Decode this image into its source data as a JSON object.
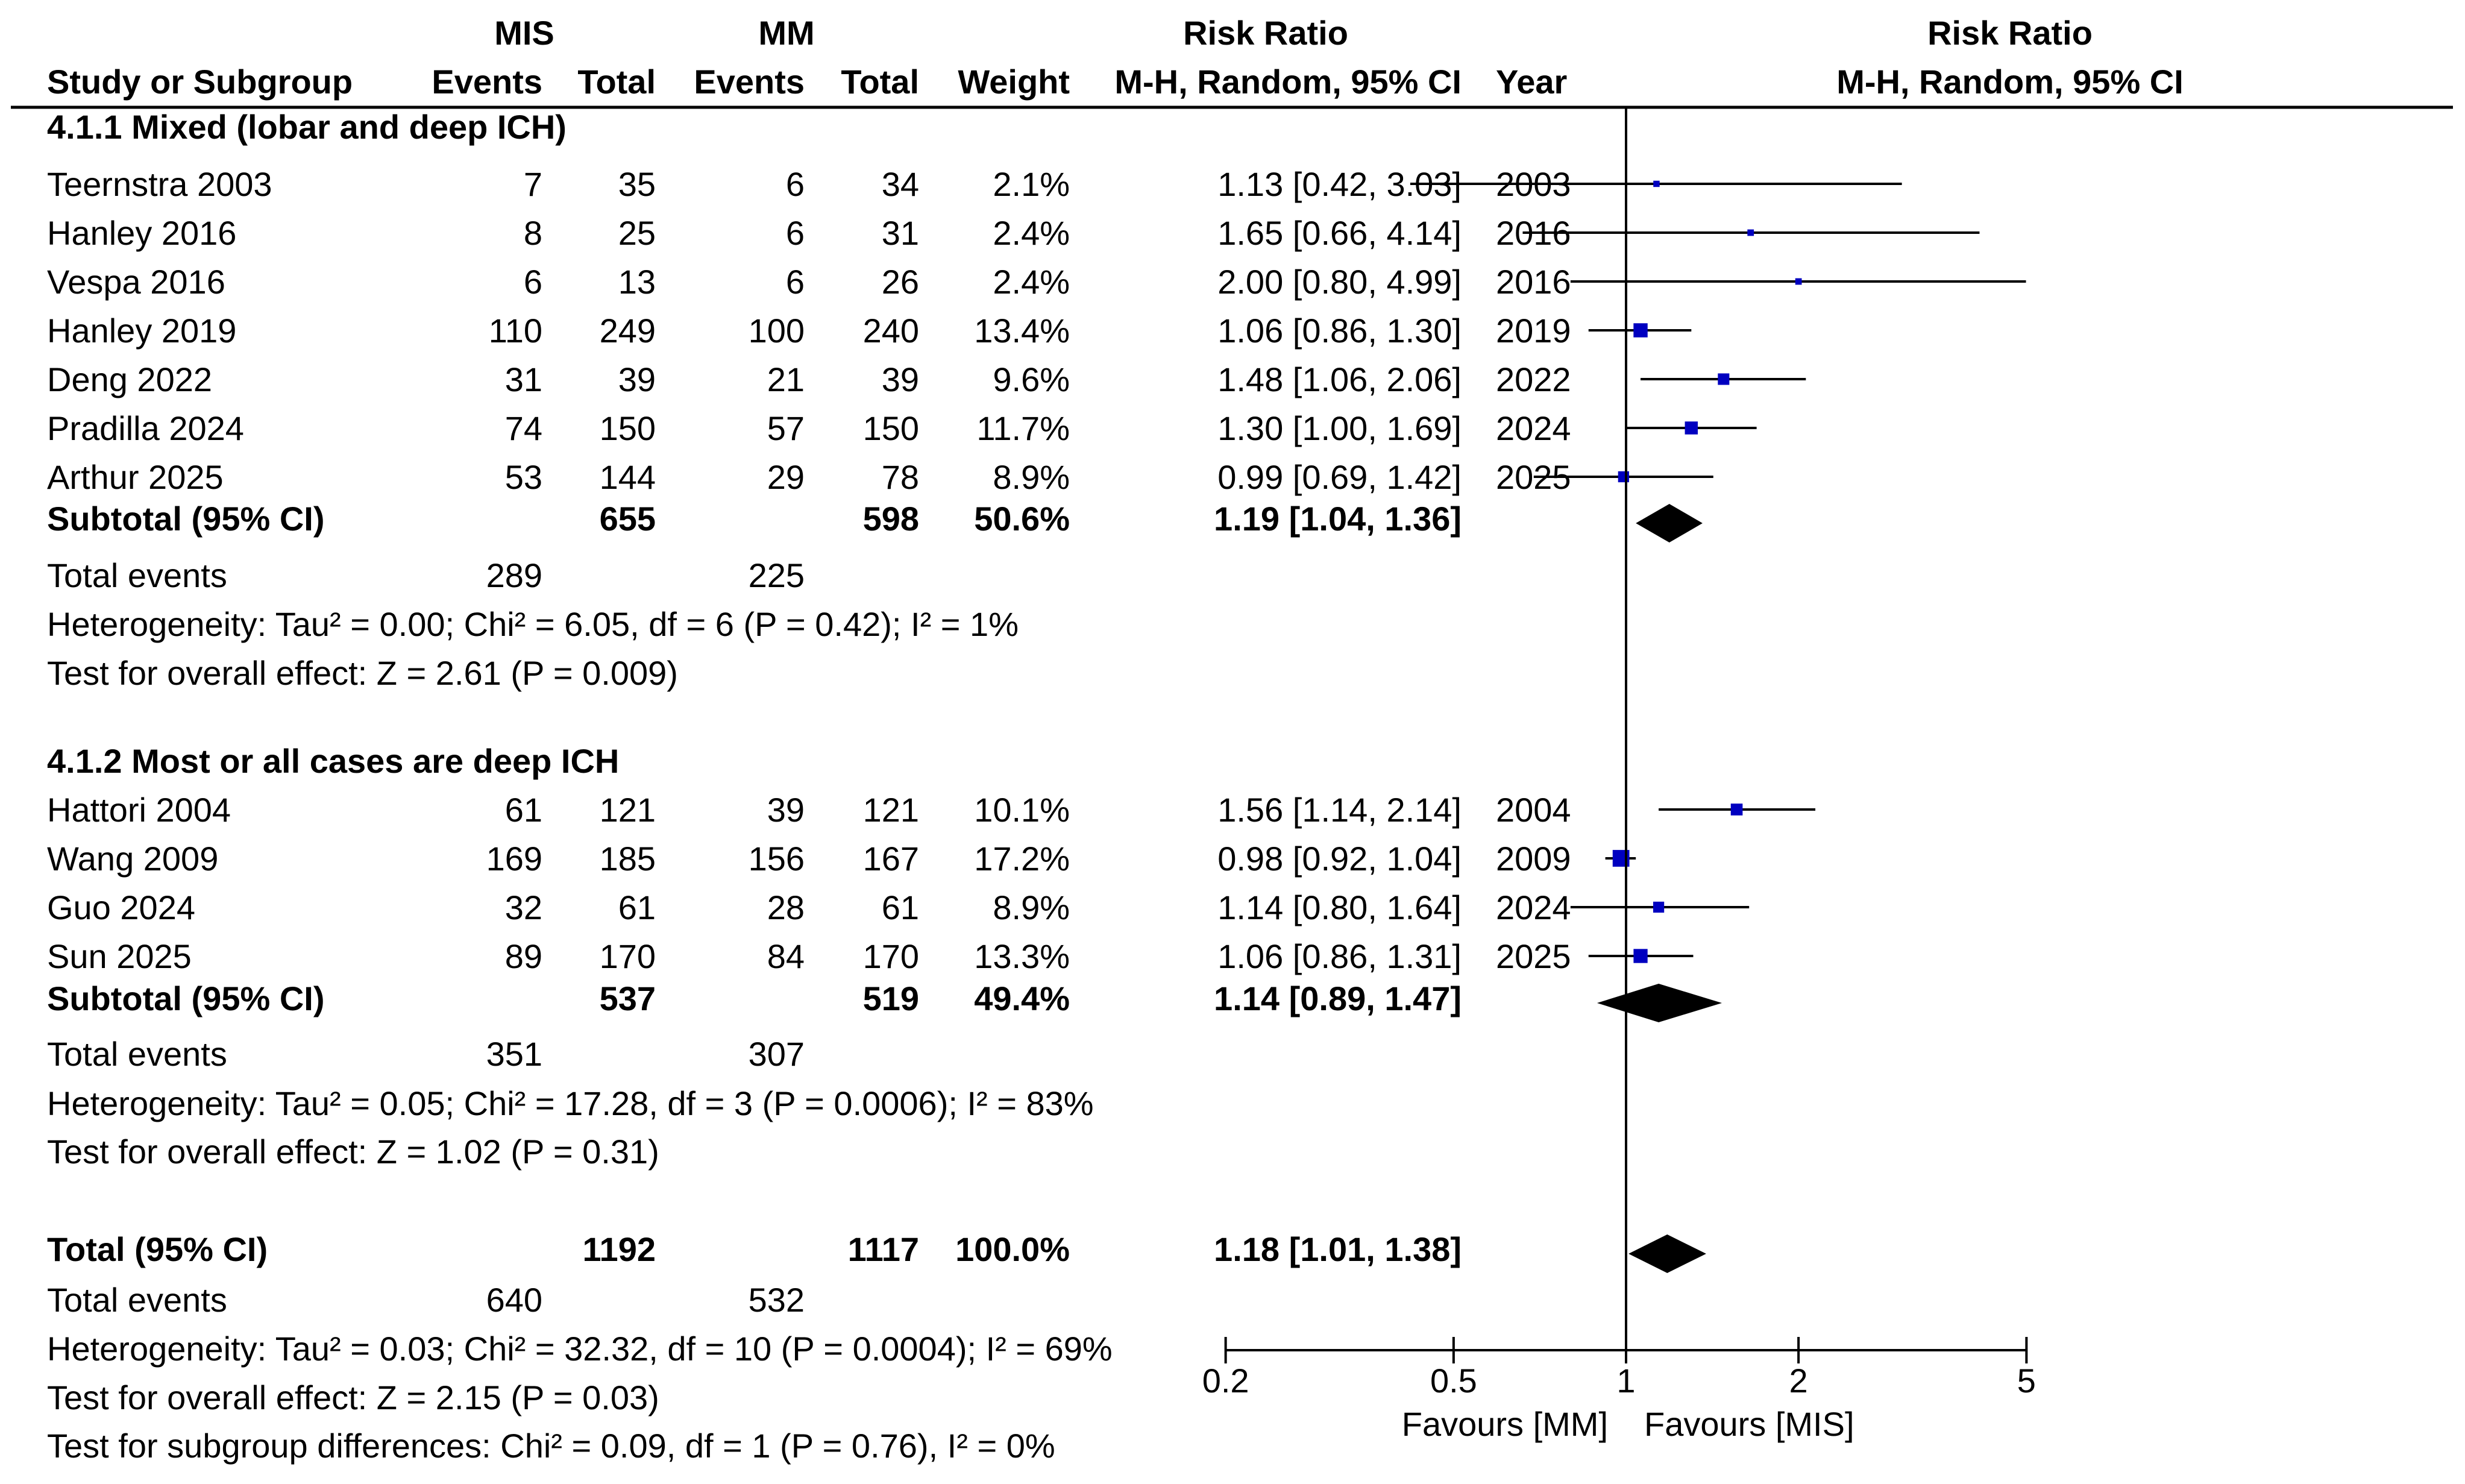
{
  "header": {
    "group1": "MIS",
    "group2": "MM",
    "rr_title": "Risk Ratio",
    "plot_title": "Risk Ratio",
    "plot_subtitle": "M-H, Random, 95% CI",
    "cols": {
      "study": "Study or Subgroup",
      "ev1": "Events",
      "tot1": "Total",
      "ev2": "Events",
      "tot2": "Total",
      "weight": "Weight",
      "ci": "M-H, Random, 95% CI",
      "year": "Year"
    }
  },
  "chart_data": {
    "type": "forest",
    "scale": "log",
    "xlim": [
      0.2,
      5
    ],
    "ticks": [
      {
        "value": 0.2,
        "label": "0.2"
      },
      {
        "value": 0.5,
        "label": "0.5"
      },
      {
        "value": 1,
        "label": "1"
      },
      {
        "value": 2,
        "label": "2"
      },
      {
        "value": 5,
        "label": "5"
      }
    ],
    "favours_left": "Favours [MM]",
    "favours_right": "Favours [MIS]",
    "rows": [
      {
        "kind": "group",
        "label": "4.1.1 Mixed (lobar and deep ICH)"
      },
      {
        "kind": "study",
        "study": "Teernstra 2003",
        "ev1": "7",
        "tot1": "35",
        "ev2": "6",
        "tot2": "34",
        "weight": "2.1%",
        "ci": "1.13 [0.42, 3.03]",
        "year": "2003",
        "rr": 1.13,
        "lo": 0.42,
        "hi": 3.03
      },
      {
        "kind": "study",
        "study": "Hanley 2016",
        "ev1": "8",
        "tot1": "25",
        "ev2": "6",
        "tot2": "31",
        "weight": "2.4%",
        "ci": "1.65 [0.66, 4.14]",
        "year": "2016",
        "rr": 1.65,
        "lo": 0.66,
        "hi": 4.14
      },
      {
        "kind": "study",
        "study": "Vespa 2016",
        "ev1": "6",
        "tot1": "13",
        "ev2": "6",
        "tot2": "26",
        "weight": "2.4%",
        "ci": "2.00 [0.80, 4.99]",
        "year": "2016",
        "rr": 2.0,
        "lo": 0.8,
        "hi": 4.99
      },
      {
        "kind": "study",
        "study": "Hanley 2019",
        "ev1": "110",
        "tot1": "249",
        "ev2": "100",
        "tot2": "240",
        "weight": "13.4%",
        "ci": "1.06 [0.86, 1.30]",
        "year": "2019",
        "rr": 1.06,
        "lo": 0.86,
        "hi": 1.3
      },
      {
        "kind": "study",
        "study": "Deng 2022",
        "ev1": "31",
        "tot1": "39",
        "ev2": "21",
        "tot2": "39",
        "weight": "9.6%",
        "ci": "1.48 [1.06, 2.06]",
        "year": "2022",
        "rr": 1.48,
        "lo": 1.06,
        "hi": 2.06
      },
      {
        "kind": "study",
        "study": "Pradilla 2024",
        "ev1": "74",
        "tot1": "150",
        "ev2": "57",
        "tot2": "150",
        "weight": "11.7%",
        "ci": "1.30 [1.00, 1.69]",
        "year": "2024",
        "rr": 1.3,
        "lo": 1.0,
        "hi": 1.69
      },
      {
        "kind": "study",
        "study": "Arthur 2025",
        "ev1": "53",
        "tot1": "144",
        "ev2": "29",
        "tot2": "78",
        "weight": "8.9%",
        "ci": "0.99 [0.69, 1.42]",
        "year": "2025",
        "rr": 0.99,
        "lo": 0.69,
        "hi": 1.42
      },
      {
        "kind": "subtotal",
        "study": "Subtotal (95% CI)",
        "tot1": "655",
        "tot2": "598",
        "weight": "50.6%",
        "ci": "1.19 [1.04, 1.36]",
        "rr": 1.19,
        "lo": 1.04,
        "hi": 1.36
      },
      {
        "kind": "events",
        "study": "Total events",
        "ev1": "289",
        "ev2": "225"
      },
      {
        "kind": "text",
        "text": "Heterogeneity: Tau² = 0.00; Chi² = 6.05, df = 6 (P = 0.42); I² = 1%"
      },
      {
        "kind": "text",
        "text": "Test for overall effect: Z = 2.61 (P = 0.009)"
      },
      {
        "kind": "group",
        "label": "4.1.2 Most or all cases are deep ICH"
      },
      {
        "kind": "study",
        "study": "Hattori 2004",
        "ev1": "61",
        "tot1": "121",
        "ev2": "39",
        "tot2": "121",
        "weight": "10.1%",
        "ci": "1.56 [1.14, 2.14]",
        "year": "2004",
        "rr": 1.56,
        "lo": 1.14,
        "hi": 2.14
      },
      {
        "kind": "study",
        "study": "Wang 2009",
        "ev1": "169",
        "tot1": "185",
        "ev2": "156",
        "tot2": "167",
        "weight": "17.2%",
        "ci": "0.98 [0.92, 1.04]",
        "year": "2009",
        "rr": 0.98,
        "lo": 0.92,
        "hi": 1.04
      },
      {
        "kind": "study",
        "study": "Guo 2024",
        "ev1": "32",
        "tot1": "61",
        "ev2": "28",
        "tot2": "61",
        "weight": "8.9%",
        "ci": "1.14 [0.80, 1.64]",
        "year": "2024",
        "rr": 1.14,
        "lo": 0.8,
        "hi": 1.64
      },
      {
        "kind": "study",
        "study": "Sun 2025",
        "ev1": "89",
        "tot1": "170",
        "ev2": "84",
        "tot2": "170",
        "weight": "13.3%",
        "ci": "1.06 [0.86, 1.31]",
        "year": "2025",
        "rr": 1.06,
        "lo": 0.86,
        "hi": 1.31
      },
      {
        "kind": "subtotal",
        "study": "Subtotal (95% CI)",
        "tot1": "537",
        "tot2": "519",
        "weight": "49.4%",
        "ci": "1.14 [0.89, 1.47]",
        "rr": 1.14,
        "lo": 0.89,
        "hi": 1.47
      },
      {
        "kind": "events",
        "study": "Total events",
        "ev1": "351",
        "ev2": "307"
      },
      {
        "kind": "text",
        "text": "Heterogeneity: Tau² = 0.05; Chi² = 17.28, df = 3 (P = 0.0006); I² = 83%"
      },
      {
        "kind": "text",
        "text": "Test for overall effect: Z = 1.02 (P = 0.31)"
      },
      {
        "kind": "subtotal",
        "study": "Total (95% CI)",
        "tot1": "1192",
        "tot2": "1117",
        "weight": "100.0%",
        "ci": "1.18 [1.01, 1.38]",
        "rr": 1.18,
        "lo": 1.01,
        "hi": 1.38
      },
      {
        "kind": "events",
        "study": "Total events",
        "ev1": "640",
        "ev2": "532"
      },
      {
        "kind": "text",
        "text": "Heterogeneity: Tau² = 0.03; Chi² = 32.32, df = 10 (P = 0.0004); I² = 69%"
      },
      {
        "kind": "text",
        "text": "Test for overall effect: Z = 2.15 (P = 0.03)"
      },
      {
        "kind": "text",
        "text": "Test for subgroup differences: Chi² = 0.09, df = 1 (P = 0.76), I² = 0%"
      }
    ]
  },
  "colors": {
    "ink": "#000000",
    "study_marker": "#0000c0"
  }
}
